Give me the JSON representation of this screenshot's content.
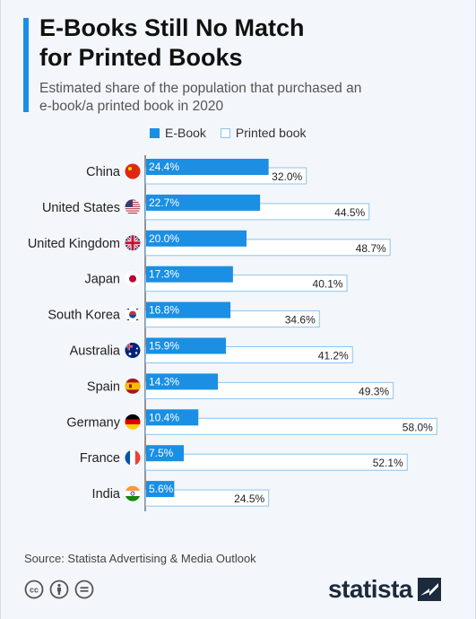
{
  "header": {
    "title_line1": "E-Books Still No Match",
    "title_line2": "for Printed Books",
    "subtitle_line1": "Estimated share of the population that purchased an",
    "subtitle_line2": "e-book/a printed book in 2020"
  },
  "legend": {
    "ebook": "E-Book",
    "printed": "Printed book"
  },
  "footer": {
    "source": "Source: Statista Advertising & Media Outlook",
    "logo": "statista"
  },
  "colors": {
    "ebook": "#1a8fe3",
    "printed_fill": "#ffffff",
    "printed_border": "#8cc4ee",
    "accent": "#1a8fe3"
  },
  "chart_data": {
    "type": "bar",
    "orientation": "horizontal",
    "categories": [
      "China",
      "United States",
      "United Kingdom",
      "Japan",
      "South Korea",
      "Australia",
      "Spain",
      "Germany",
      "France",
      "India"
    ],
    "flag_icons": [
      "china-flag-icon",
      "usa-flag-icon",
      "uk-flag-icon",
      "japan-flag-icon",
      "south-korea-flag-icon",
      "australia-flag-icon",
      "spain-flag-icon",
      "germany-flag-icon",
      "france-flag-icon",
      "india-flag-icon"
    ],
    "series": [
      {
        "name": "E-Book",
        "values": [
          24.4,
          22.7,
          20.0,
          17.3,
          16.8,
          15.9,
          14.3,
          10.4,
          7.5,
          5.6
        ],
        "labels": [
          "24.4%",
          "22.7%",
          "20.0%",
          "17.3%",
          "16.8%",
          "15.9%",
          "14.3%",
          "10.4%",
          "7.5%",
          "5.6%"
        ]
      },
      {
        "name": "Printed book",
        "values": [
          32.0,
          44.5,
          48.7,
          40.1,
          34.6,
          41.2,
          49.3,
          58.0,
          52.1,
          24.5
        ],
        "labels": [
          "32.0%",
          "44.5%",
          "48.7%",
          "40.1%",
          "34.6%",
          "41.2%",
          "49.3%",
          "58.0%",
          "52.1%",
          "24.5%"
        ]
      }
    ],
    "xlim": [
      0,
      58
    ],
    "legend_position": "top",
    "grid": false
  }
}
